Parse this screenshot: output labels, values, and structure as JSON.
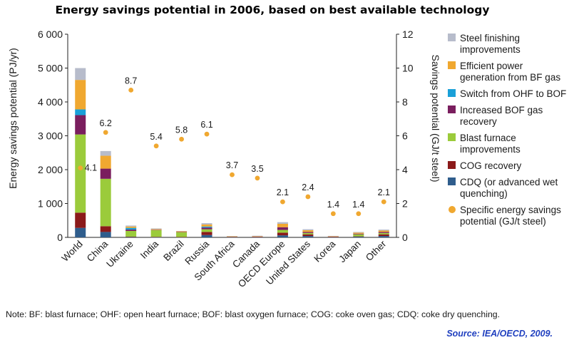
{
  "chart_data": {
    "type": "bar",
    "title": "Energy savings potential in 2006, based on best available technology",
    "ylabel": "Energy savings potential (PJ/yr)",
    "y2label": "Savings potential (GJ/t steel)",
    "ylim": [
      0,
      6000
    ],
    "y2lim": [
      0,
      12
    ],
    "yticks": [
      "0",
      "1 000",
      "2 000",
      "3 000",
      "4 000",
      "5 000",
      "6 000"
    ],
    "y2ticks": [
      "0",
      "2",
      "4",
      "6",
      "8",
      "10",
      "12"
    ],
    "categories": [
      "World",
      "China",
      "Ukraine",
      "India",
      "Brazil",
      "Russia",
      "South Africa",
      "Canada",
      "OECD Europe",
      "United States",
      "Korea",
      "Japan",
      "Other"
    ],
    "series": [
      {
        "name": "CDQ (or advanced wet quenching)",
        "color": "#2f5d8c",
        "values": [
          280,
          160,
          10,
          5,
          5,
          70,
          5,
          5,
          60,
          40,
          5,
          20,
          40
        ]
      },
      {
        "name": "COG recovery",
        "color": "#8b1a1a",
        "values": [
          450,
          170,
          10,
          10,
          5,
          90,
          5,
          5,
          80,
          50,
          5,
          10,
          50
        ]
      },
      {
        "name": "Blast furnace improvements",
        "color": "#9bcb3b",
        "values": [
          2310,
          1400,
          170,
          200,
          140,
          80,
          5,
          10,
          80,
          40,
          10,
          60,
          40
        ]
      },
      {
        "name": "Increased BOF gas recovery",
        "color": "#7a1e5e",
        "values": [
          570,
          300,
          40,
          10,
          10,
          50,
          5,
          5,
          80,
          30,
          5,
          20,
          30
        ]
      },
      {
        "name": "Switch from OHF to BOF",
        "color": "#1aa0d8",
        "values": [
          170,
          0,
          50,
          0,
          0,
          30,
          0,
          0,
          0,
          0,
          0,
          0,
          0
        ]
      },
      {
        "name": "Efficient power generation from BF gas",
        "color": "#f0a830",
        "values": [
          870,
          380,
          40,
          20,
          20,
          60,
          10,
          10,
          100,
          50,
          10,
          30,
          40
        ]
      },
      {
        "name": "Steel finishing improvements",
        "color": "#b7bccb",
        "values": [
          350,
          140,
          30,
          20,
          10,
          40,
          10,
          15,
          50,
          30,
          10,
          20,
          30
        ]
      }
    ],
    "specific": {
      "name": "Specific energy savings potential (GJ/t steel)",
      "color": "#f0a830",
      "values": [
        4.1,
        6.2,
        8.7,
        5.4,
        5.8,
        6.1,
        3.7,
        3.5,
        2.1,
        2.4,
        1.4,
        1.4,
        2.1
      ],
      "labels": [
        "4.1",
        "6.2",
        "8.7",
        "5.4",
        "5.8",
        "6.1",
        "3.7",
        "3.5",
        "2.1",
        "2.4",
        "1.4",
        "1.4",
        "2.1"
      ]
    },
    "legend": [
      {
        "label": "Steel finishing improvements",
        "color": "#b7bccb",
        "marker": "square"
      },
      {
        "label": "Efficient power generation from BF gas",
        "color": "#f0a830",
        "marker": "square"
      },
      {
        "label": "Switch from OHF to BOF",
        "color": "#1aa0d8",
        "marker": "square"
      },
      {
        "label": "Increased BOF gas recovery",
        "color": "#7a1e5e",
        "marker": "square"
      },
      {
        "label": "Blast furnace improvements",
        "color": "#9bcb3b",
        "marker": "square"
      },
      {
        "label": "COG recovery",
        "color": "#8b1a1a",
        "marker": "square"
      },
      {
        "label": "CDQ (or advanced wet quenching)",
        "color": "#2f5d8c",
        "marker": "square"
      },
      {
        "label": "Specific energy savings potential (GJ/t steel)",
        "color": "#f0a830",
        "marker": "circle"
      }
    ],
    "legend_position": "right"
  },
  "note": "Note: BF: blast furnace; OHF: open heart furnace; BOF: blast oxygen furnace; COG: coke oven gas; CDQ: coke dry quenching.",
  "source": "Source: IEA/OECD, 2009."
}
